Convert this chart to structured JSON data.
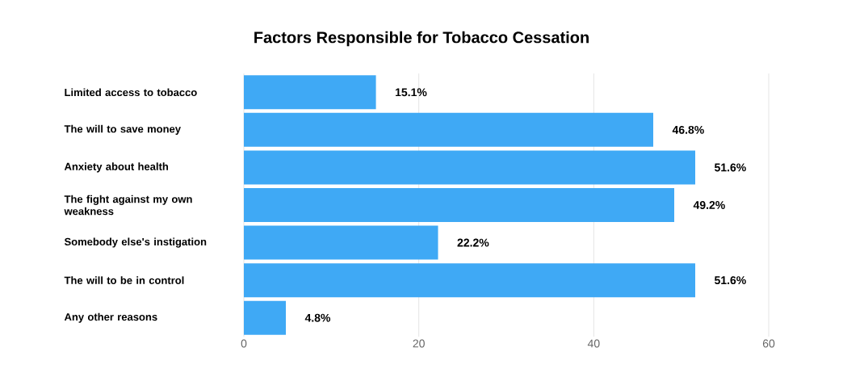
{
  "chart_data": {
    "type": "bar",
    "orientation": "horizontal",
    "title": "Factors Responsible for Tobacco Cessation",
    "categories": [
      "Limited access to tobacco",
      "The will to save money",
      "Anxiety about health",
      "The fight against my own weakness",
      "Somebody else's instigation",
      "The will to be in control",
      "Any other reasons"
    ],
    "values": [
      15.1,
      46.8,
      51.6,
      49.2,
      22.2,
      51.6,
      4.8
    ],
    "value_labels": [
      "15.1%",
      "46.8%",
      "51.6%",
      "49.2%",
      "22.2%",
      "51.6%",
      "4.8%"
    ],
    "color": "#3fa9f5",
    "xlim": [
      0,
      60
    ],
    "xticks": [
      0,
      20,
      40,
      60
    ],
    "grid": "x"
  }
}
